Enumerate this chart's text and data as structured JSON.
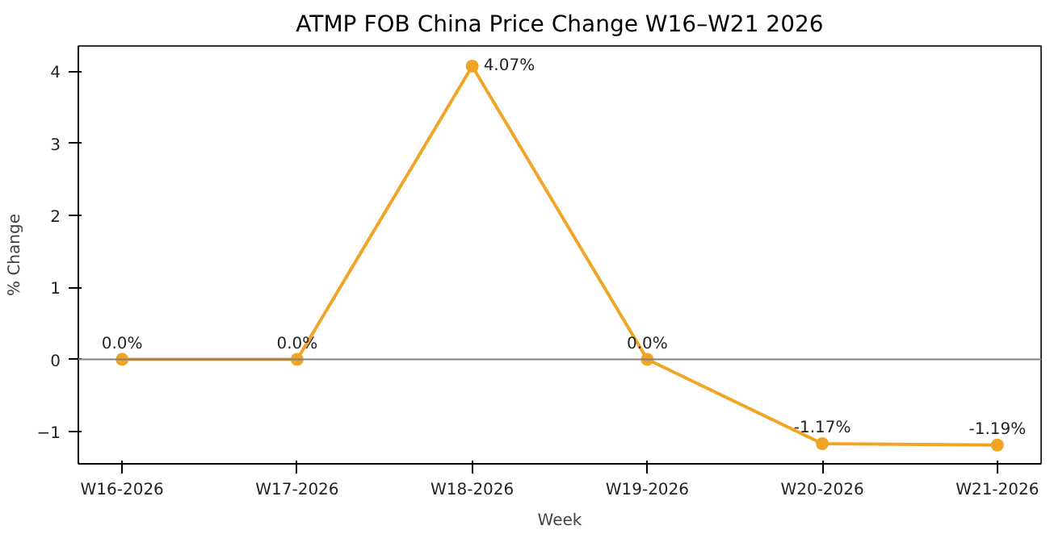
{
  "chart_data": {
    "type": "line",
    "title": "ATMP FOB China Price Change W16–W21 2026",
    "xlabel": "Week",
    "ylabel": "% Change",
    "categories": [
      "W16-2026",
      "W17-2026",
      "W18-2026",
      "W19-2026",
      "W20-2026",
      "W21-2026"
    ],
    "series": [
      {
        "color": "#f0a526",
        "values": [
          0,
          0,
          4.07,
          0,
          -1.17,
          -1.19
        ],
        "value_labels": [
          "0.0%",
          "0.0%",
          "4.07%",
          "0.0%",
          "-1.17%",
          "-1.19%"
        ]
      }
    ],
    "ylim": [
      -1.45,
      4.35
    ],
    "yticks": [
      -1,
      0,
      1,
      2,
      3,
      4
    ],
    "ref_lines": [
      {
        "axis": "y",
        "value": 0,
        "color": "#808080"
      }
    ],
    "marker": "circle",
    "line_style": "solid",
    "grid": false
  }
}
